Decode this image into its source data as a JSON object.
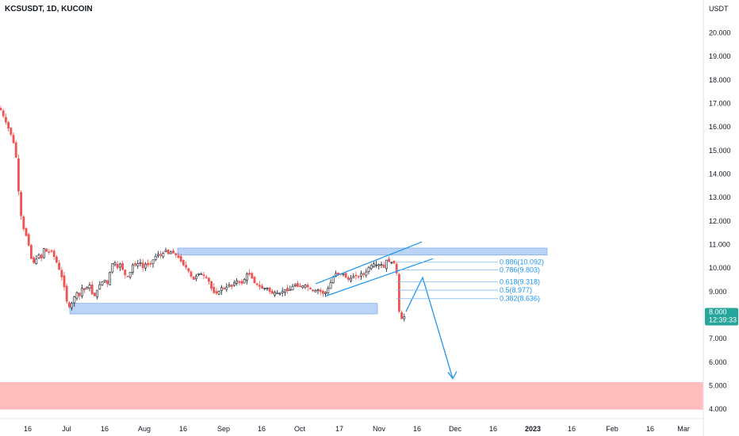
{
  "chart_data": {
    "type": "candlestick",
    "title": "KCSUSDT, 1D, KUCOIN",
    "currency_label": "USDT",
    "ylim": [
      3.6,
      21.4
    ],
    "yticks": [
      {
        "v": 20,
        "label": "20.000"
      },
      {
        "v": 19,
        "label": "19.000"
      },
      {
        "v": 18,
        "label": "18.000"
      },
      {
        "v": 17,
        "label": "17.000"
      },
      {
        "v": 16,
        "label": "16.000"
      },
      {
        "v": 15,
        "label": "15.000"
      },
      {
        "v": 14,
        "label": "14.000"
      },
      {
        "v": 13,
        "label": "13.000"
      },
      {
        "v": 12,
        "label": "12.000"
      },
      {
        "v": 11,
        "label": "11.000"
      },
      {
        "v": 10,
        "label": "10.000"
      },
      {
        "v": 9,
        "label": "9.000"
      },
      {
        "v": 7,
        "label": "7.000"
      },
      {
        "v": 6,
        "label": "6.000"
      },
      {
        "v": 5,
        "label": "5.000"
      },
      {
        "v": 4,
        "label": "4.000"
      }
    ],
    "xticks": [
      {
        "pos": 35,
        "label": "16",
        "bold": false
      },
      {
        "pos": 84,
        "label": "Jul",
        "bold": false
      },
      {
        "pos": 132,
        "label": "16",
        "bold": false
      },
      {
        "pos": 182,
        "label": "Aug",
        "bold": false
      },
      {
        "pos": 231,
        "label": "16",
        "bold": false
      },
      {
        "pos": 282,
        "label": "Sep",
        "bold": false
      },
      {
        "pos": 330,
        "label": "16",
        "bold": false
      },
      {
        "pos": 378,
        "label": "Oct",
        "bold": false
      },
      {
        "pos": 428,
        "label": "17",
        "bold": false
      },
      {
        "pos": 478,
        "label": "Nov",
        "bold": false
      },
      {
        "pos": 526,
        "label": "16",
        "bold": false
      },
      {
        "pos": 574,
        "label": "Dec",
        "bold": false
      },
      {
        "pos": 622,
        "label": "16",
        "bold": false
      },
      {
        "pos": 672,
        "label": "2023",
        "bold": true
      },
      {
        "pos": 721,
        "label": "16",
        "bold": false
      },
      {
        "pos": 772,
        "label": "Feb",
        "bold": false
      },
      {
        "pos": 820,
        "label": "16",
        "bold": false
      },
      {
        "pos": 862,
        "label": "Mar",
        "bold": false
      }
    ],
    "last_price": {
      "value": "8.000",
      "countdown": "12:39:33",
      "y": 8.0
    },
    "colors": {
      "up": "#26a69a",
      "down": "#ef5350",
      "zone": "#bbd4f5",
      "zone_border": "#6a9fe6",
      "target_zone": "#ffbcbc",
      "line": "#2196f3",
      "fib": "#2196f3"
    },
    "candles_anchor": [
      [
        0,
        16.8
      ],
      [
        5,
        16.4
      ],
      [
        10,
        16.0
      ],
      [
        16,
        15.5
      ],
      [
        20,
        14.8
      ],
      [
        24,
        13.0
      ],
      [
        28,
        11.8
      ],
      [
        32,
        11.5
      ],
      [
        36,
        11.0
      ],
      [
        40,
        10.3
      ],
      [
        44,
        10.2
      ],
      [
        48,
        10.6
      ],
      [
        52,
        10.4
      ],
      [
        56,
        10.9
      ],
      [
        60,
        10.6
      ],
      [
        64,
        10.8
      ],
      [
        68,
        10.5
      ],
      [
        72,
        10.2
      ],
      [
        76,
        9.8
      ],
      [
        80,
        9.4
      ],
      [
        84,
        8.6
      ],
      [
        88,
        8.3
      ],
      [
        92,
        8.6
      ],
      [
        96,
        9.0
      ],
      [
        100,
        8.8
      ],
      [
        104,
        9.2
      ],
      [
        108,
        9.0
      ],
      [
        112,
        9.4
      ],
      [
        116,
        8.9
      ],
      [
        120,
        8.8
      ],
      [
        124,
        9.2
      ],
      [
        128,
        9.4
      ],
      [
        132,
        9.5
      ],
      [
        136,
        9.3
      ],
      [
        140,
        10.1
      ],
      [
        144,
        10.3
      ],
      [
        148,
        10.0
      ],
      [
        152,
        10.2
      ],
      [
        156,
        9.8
      ],
      [
        160,
        9.6
      ],
      [
        164,
        9.8
      ],
      [
        168,
        10.2
      ],
      [
        172,
        10.1
      ],
      [
        176,
        10.3
      ],
      [
        180,
        10.0
      ],
      [
        184,
        10.2
      ],
      [
        188,
        10.1
      ],
      [
        192,
        10.3
      ],
      [
        196,
        10.5
      ],
      [
        200,
        10.6
      ],
      [
        204,
        10.5
      ],
      [
        208,
        10.8
      ],
      [
        212,
        10.6
      ],
      [
        216,
        10.7
      ],
      [
        220,
        10.6
      ],
      [
        224,
        10.5
      ],
      [
        228,
        10.3
      ],
      [
        232,
        10.1
      ],
      [
        236,
        10.0
      ],
      [
        240,
        9.7
      ],
      [
        244,
        9.5
      ],
      [
        248,
        9.7
      ],
      [
        252,
        9.8
      ],
      [
        256,
        9.7
      ],
      [
        260,
        9.6
      ],
      [
        264,
        9.4
      ],
      [
        268,
        9.0
      ],
      [
        272,
        8.9
      ],
      [
        276,
        9.0
      ],
      [
        280,
        9.2
      ],
      [
        284,
        9.1
      ],
      [
        288,
        9.3
      ],
      [
        292,
        9.2
      ],
      [
        296,
        9.4
      ],
      [
        300,
        9.5
      ],
      [
        304,
        9.3
      ],
      [
        308,
        9.5
      ],
      [
        312,
        9.8
      ],
      [
        316,
        9.7
      ],
      [
        320,
        9.4
      ],
      [
        324,
        9.3
      ],
      [
        328,
        9.2
      ],
      [
        332,
        9.1
      ],
      [
        336,
        9.2
      ],
      [
        340,
        9.0
      ],
      [
        344,
        8.9
      ],
      [
        348,
        9.0
      ],
      [
        352,
        8.9
      ],
      [
        356,
        9.0
      ],
      [
        360,
        9.1
      ],
      [
        364,
        9.0
      ],
      [
        368,
        9.2
      ],
      [
        372,
        9.3
      ],
      [
        376,
        9.2
      ],
      [
        380,
        9.2
      ],
      [
        384,
        9.3
      ],
      [
        388,
        9.2
      ],
      [
        392,
        9.1
      ],
      [
        396,
        9.0
      ],
      [
        400,
        9.1
      ],
      [
        404,
        9.0
      ],
      [
        408,
        8.9
      ],
      [
        412,
        9.0
      ],
      [
        416,
        9.3
      ],
      [
        420,
        9.6
      ],
      [
        424,
        9.8
      ],
      [
        428,
        9.7
      ],
      [
        432,
        9.8
      ],
      [
        436,
        9.6
      ],
      [
        440,
        9.5
      ],
      [
        444,
        9.6
      ],
      [
        448,
        9.7
      ],
      [
        452,
        9.6
      ],
      [
        456,
        9.8
      ],
      [
        460,
        9.7
      ],
      [
        464,
        10.0
      ],
      [
        468,
        10.1
      ],
      [
        472,
        10.2
      ],
      [
        476,
        10.1
      ],
      [
        480,
        10.2
      ],
      [
        484,
        10.0
      ],
      [
        488,
        10.4
      ],
      [
        492,
        10.2
      ],
      [
        496,
        10.3
      ],
      [
        500,
        9.9
      ],
      [
        503,
        8.2
      ],
      [
        507,
        7.8
      ],
      [
        511,
        8.0
      ]
    ],
    "zones": [
      {
        "name": "resistance-zone",
        "x1": 224,
        "x2": 690,
        "y1": 10.55,
        "y2": 10.85,
        "color": "#bbd4f5"
      },
      {
        "name": "support-zone",
        "x1": 88,
        "x2": 476,
        "y1": 8.05,
        "y2": 8.5,
        "color": "#bbd4f5"
      },
      {
        "name": "target-zone",
        "x1": 0,
        "x2": 887,
        "y1": 3.98,
        "y2": 5.15,
        "color": "#ffbcbc"
      }
    ],
    "channel_lines": [
      {
        "x1": 398,
        "y1": 9.33,
        "x2": 532,
        "y2": 11.11
      },
      {
        "x1": 410,
        "y1": 8.8,
        "x2": 546,
        "y2": 10.4
      }
    ],
    "projection": [
      [
        512,
        8.15
      ],
      [
        533,
        9.6
      ],
      [
        571,
        5.3
      ]
    ],
    "fib_levels": [
      {
        "label": "0.886(10.092)",
        "y": 10.25
      },
      {
        "label": "0.786(9.803)",
        "y": 9.92
      },
      {
        "label": "0.618(9.318)",
        "y": 9.42
      },
      {
        "label": "0.5(8.977)",
        "y": 9.06
      },
      {
        "label": "0.382(8.636)",
        "y": 8.7
      }
    ],
    "fib_x1": 500,
    "fib_x2": 628
  }
}
